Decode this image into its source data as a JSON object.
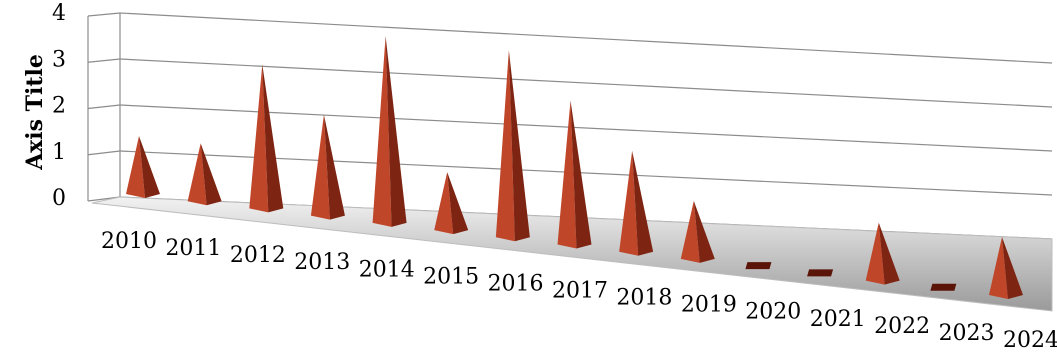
{
  "chart_data": {
    "type": "bar",
    "style": "3d-pyramid",
    "categories": [
      "2010",
      "2011",
      "2012",
      "2013",
      "2014",
      "2015",
      "2016",
      "2017",
      "2018",
      "2019",
      "2020",
      "2021",
      "2022",
      "2023",
      "2024"
    ],
    "series": [
      {
        "values": [
          1,
          1,
          3,
          2,
          4,
          1,
          4,
          3,
          2,
          1,
          0,
          0,
          1,
          0,
          1
        ]
      }
    ],
    "ylabel": "Axis Title",
    "xlabel": "",
    "ylim": [
      0,
      4
    ],
    "yticks": [
      "0",
      "1",
      "2",
      "3",
      "4"
    ],
    "grid": true,
    "legend": "none",
    "colors": {
      "pyramid_light": "#c0462a",
      "pyramid_dark": "#7e2412",
      "floor_light": "#f2f2f2",
      "floor_dark": "#9a9a9a",
      "gridline": "#8c8c8c"
    }
  }
}
